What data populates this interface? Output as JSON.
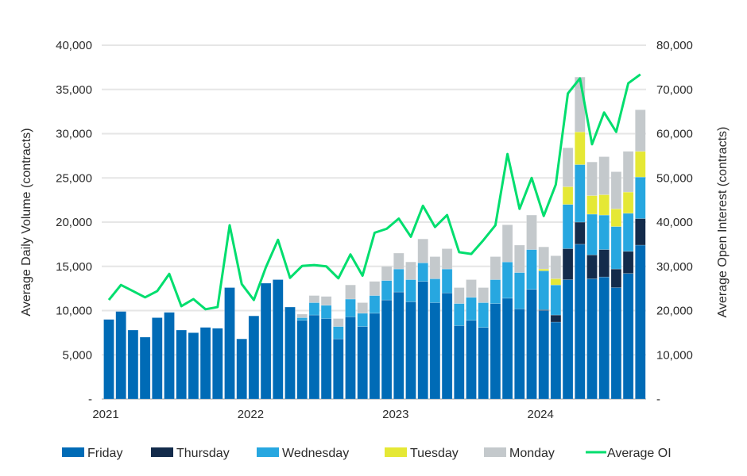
{
  "chart_data": {
    "type": "bar",
    "stacked": true,
    "title": "",
    "ylabel": "Average Daily Volume (contracts)",
    "y2label": "Average Open Interest (contracts)",
    "ylim": [
      0,
      40000
    ],
    "y2lim": [
      0,
      80000
    ],
    "yticks": [
      "-",
      "5,000",
      "10,000",
      "15,000",
      "20,000",
      "25,000",
      "30,000",
      "35,000",
      "40,000"
    ],
    "y2ticks": [
      "-",
      "10,000",
      "20,000",
      "30,000",
      "40,000",
      "50,000",
      "60,000",
      "70,000",
      "80,000"
    ],
    "xtick_labels": [
      {
        "label": "2021",
        "index": 0
      },
      {
        "label": "2022",
        "index": 12
      },
      {
        "label": "2023",
        "index": 24
      },
      {
        "label": "2024",
        "index": 36
      }
    ],
    "grid": true,
    "legend_position": "bottom",
    "categories": [
      "2021-01",
      "2021-02",
      "2021-03",
      "2021-04",
      "2021-05",
      "2021-06",
      "2021-07",
      "2021-08",
      "2021-09",
      "2021-10",
      "2021-11",
      "2021-12",
      "2022-01",
      "2022-02",
      "2022-03",
      "2022-04",
      "2022-05",
      "2022-06",
      "2022-07",
      "2022-08",
      "2022-09",
      "2022-10",
      "2022-11",
      "2022-12",
      "2023-01",
      "2023-02",
      "2023-03",
      "2023-04",
      "2023-05",
      "2023-06",
      "2023-07",
      "2023-08",
      "2023-09",
      "2023-10",
      "2023-11",
      "2023-12",
      "2024-01",
      "2024-02",
      "2024-03",
      "2024-04",
      "2024-05",
      "2024-06",
      "2024-07",
      "2024-08",
      "2024-09"
    ],
    "series": [
      {
        "name": "Friday",
        "color": "#006BB6",
        "values": [
          9000,
          9900,
          7800,
          7000,
          9200,
          9800,
          7800,
          7500,
          8100,
          8000,
          12600,
          6800,
          9400,
          13100,
          13500,
          10400,
          8900,
          9500,
          9100,
          6800,
          9300,
          8200,
          9700,
          11200,
          12100,
          11000,
          13300,
          10900,
          12000,
          8300,
          8900,
          8100,
          10800,
          11400,
          10200,
          12400,
          10000,
          8700,
          13500,
          17500,
          13600,
          13800,
          12600,
          14200,
          17400
        ]
      },
      {
        "name": "Thursday",
        "color": "#132B4B",
        "values": [
          0,
          0,
          0,
          0,
          0,
          0,
          0,
          0,
          0,
          0,
          0,
          0,
          0,
          0,
          0,
          0,
          0,
          0,
          0,
          0,
          0,
          0,
          0,
          0,
          0,
          0,
          0,
          0,
          0,
          0,
          0,
          0,
          0,
          0,
          0,
          0,
          100,
          800,
          3500,
          2500,
          2700,
          3100,
          2100,
          2500,
          3000
        ]
      },
      {
        "name": "Wednesday",
        "color": "#27A7E0",
        "values": [
          0,
          0,
          0,
          0,
          0,
          0,
          0,
          0,
          0,
          0,
          0,
          0,
          0,
          0,
          0,
          0,
          300,
          1400,
          1500,
          1400,
          2000,
          1500,
          2000,
          2200,
          2600,
          2500,
          2100,
          2700,
          2700,
          2500,
          2600,
          2800,
          2700,
          4100,
          4100,
          4500,
          4400,
          3400,
          5000,
          6500,
          4600,
          3900,
          4800,
          4300,
          4700
        ]
      },
      {
        "name": "Tuesday",
        "color": "#E5E835",
        "values": [
          0,
          0,
          0,
          0,
          0,
          0,
          0,
          0,
          0,
          0,
          0,
          0,
          0,
          0,
          0,
          0,
          0,
          0,
          0,
          0,
          0,
          0,
          0,
          0,
          0,
          0,
          0,
          0,
          0,
          0,
          0,
          0,
          0,
          0,
          0,
          0,
          200,
          700,
          2000,
          3700,
          2100,
          2300,
          2000,
          2400,
          2900
        ]
      },
      {
        "name": "Monday",
        "color": "#C4C9CC",
        "values": [
          0,
          0,
          0,
          0,
          0,
          0,
          0,
          0,
          0,
          0,
          0,
          0,
          0,
          0,
          0,
          0,
          400,
          800,
          1000,
          900,
          1600,
          1200,
          1600,
          1600,
          1800,
          2000,
          2700,
          2500,
          2300,
          1800,
          2000,
          1700,
          2600,
          4200,
          3100,
          3900,
          2500,
          2600,
          4400,
          6200,
          3800,
          4300,
          4200,
          4600,
          4700
        ]
      }
    ],
    "line_series": {
      "name": "Average OI",
      "color": "#00DE6E",
      "axis": "right",
      "values": [
        22400,
        25800,
        24400,
        23000,
        24400,
        28300,
        21000,
        22600,
        20300,
        20800,
        39300,
        26000,
        22400,
        29800,
        36000,
        27400,
        30100,
        30300,
        30000,
        27300,
        32700,
        27900,
        37600,
        38500,
        40800,
        36700,
        43700,
        38900,
        41600,
        33200,
        32800,
        35900,
        39300,
        55400,
        43000,
        50000,
        41400,
        48500,
        69100,
        72500,
        57600,
        64800,
        60400,
        71400,
        73400
      ]
    }
  }
}
